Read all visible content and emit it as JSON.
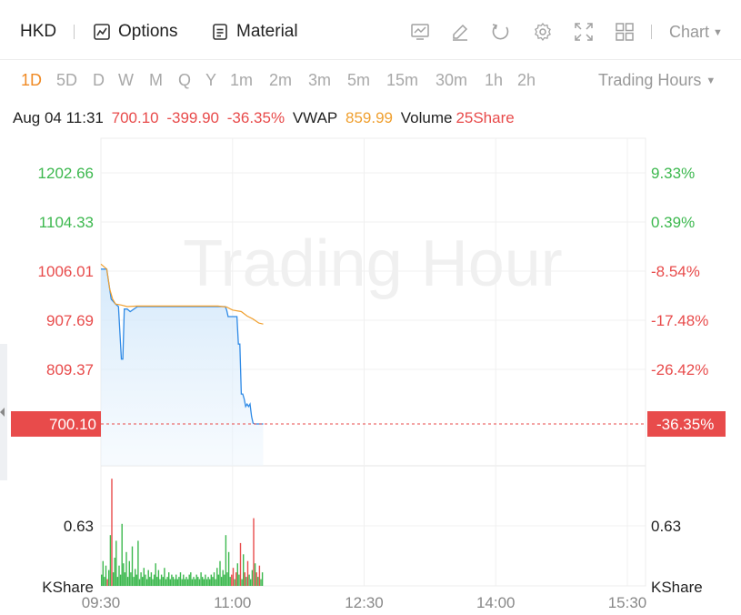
{
  "toolbar": {
    "symbol": "HKD",
    "options_label": "Options",
    "material_label": "Material",
    "chart_label": "Chart",
    "icons": [
      "indicator-icon",
      "draw-icon",
      "refresh-icon",
      "settings-icon",
      "fullscreen-icon",
      "layout-grid-icon"
    ]
  },
  "periods": {
    "items": [
      "1D",
      "5D",
      "D",
      "W",
      "M",
      "Q",
      "Y",
      "1m",
      "2m",
      "3m",
      "5m",
      "15m",
      "30m",
      "1h",
      "2h"
    ],
    "active": "1D",
    "trading_hours_label": "Trading Hours"
  },
  "info": {
    "datetime": "Aug 04 11:31",
    "price": "700.10",
    "change": "-399.90",
    "change_pct": "-36.35%",
    "vwap_label": "VWAP",
    "vwap_value": "859.99",
    "volume_label": "Volume",
    "volume_value": "25Share"
  },
  "colors": {
    "up": "#3cb84e",
    "down": "#e84b4b",
    "price_line": "#2f8ae6",
    "vwap_line": "#f0a030",
    "active_period": "#f08a24"
  },
  "chart_data": {
    "type": "line",
    "watermark": "Trading Hour",
    "price_ticks": [
      "1202.66",
      "1104.33",
      "1006.01",
      "907.69",
      "809.37"
    ],
    "pct_ticks": [
      "9.33%",
      "0.39%",
      "-8.54%",
      "-17.48%",
      "-26.42%"
    ],
    "current_price_label": "700.10",
    "current_pct_label": "-36.35%",
    "current_price": 700.1,
    "volume_tick": "0.63",
    "volume_unit": "KShare",
    "x_ticks": [
      "09:30",
      "11:00",
      "12:30",
      "14:00",
      "15:30"
    ],
    "x_minutes": [
      0,
      90,
      180,
      270,
      360
    ],
    "ylim_price": [
      700.1,
      1202.66
    ],
    "price_series": [
      [
        0,
        1010
      ],
      [
        4,
        1010
      ],
      [
        7,
        950
      ],
      [
        10,
        940
      ],
      [
        12,
        935
      ],
      [
        14,
        830
      ],
      [
        15,
        830
      ],
      [
        16,
        930
      ],
      [
        18,
        930
      ],
      [
        20,
        925
      ],
      [
        25,
        935
      ],
      [
        85,
        935
      ],
      [
        86,
        928
      ],
      [
        87,
        915
      ],
      [
        93,
        915
      ],
      [
        94,
        860
      ],
      [
        95,
        860
      ],
      [
        96,
        760
      ],
      [
        97,
        760
      ],
      [
        98,
        750
      ],
      [
        99,
        735
      ],
      [
        100,
        740
      ],
      [
        101,
        735
      ],
      [
        102,
        740
      ],
      [
        103,
        715
      ],
      [
        104,
        702
      ],
      [
        105,
        700.1
      ],
      [
        111,
        700.1
      ]
    ],
    "vwap_series": [
      [
        0,
        1020
      ],
      [
        2,
        1015
      ],
      [
        4,
        1010
      ],
      [
        6,
        970
      ],
      [
        8,
        950
      ],
      [
        10,
        940
      ],
      [
        14,
        938
      ],
      [
        18,
        935
      ],
      [
        25,
        936
      ],
      [
        50,
        936
      ],
      [
        80,
        936
      ],
      [
        86,
        934
      ],
      [
        90,
        928
      ],
      [
        96,
        925
      ],
      [
        100,
        916
      ],
      [
        104,
        910
      ],
      [
        108,
        902
      ],
      [
        111,
        900
      ]
    ],
    "volume_series": [
      [
        0,
        0.1,
        "up"
      ],
      [
        1,
        0.22,
        "up"
      ],
      [
        2,
        0.08,
        "up"
      ],
      [
        3,
        0.18,
        "up"
      ],
      [
        4,
        0.06,
        "down"
      ],
      [
        5,
        0.14,
        "up"
      ],
      [
        6,
        0.45,
        "up"
      ],
      [
        7,
        0.95,
        "down"
      ],
      [
        8,
        0.12,
        "up"
      ],
      [
        9,
        0.25,
        "up"
      ],
      [
        10,
        0.4,
        "up"
      ],
      [
        11,
        0.08,
        "up"
      ],
      [
        12,
        0.18,
        "up"
      ],
      [
        13,
        0.1,
        "up"
      ],
      [
        14,
        0.55,
        "up"
      ],
      [
        15,
        0.2,
        "up"
      ],
      [
        16,
        0.12,
        "up"
      ],
      [
        17,
        0.3,
        "up"
      ],
      [
        18,
        0.08,
        "up"
      ],
      [
        19,
        0.22,
        "up"
      ],
      [
        20,
        0.12,
        "up"
      ],
      [
        21,
        0.35,
        "up"
      ],
      [
        22,
        0.08,
        "up"
      ],
      [
        23,
        0.15,
        "up"
      ],
      [
        24,
        0.1,
        "up"
      ],
      [
        25,
        0.4,
        "up"
      ],
      [
        26,
        0.06,
        "up"
      ],
      [
        27,
        0.12,
        "up"
      ],
      [
        28,
        0.08,
        "up"
      ],
      [
        29,
        0.16,
        "up"
      ],
      [
        30,
        0.1,
        "up"
      ],
      [
        31,
        0.06,
        "up"
      ],
      [
        32,
        0.14,
        "up"
      ],
      [
        33,
        0.08,
        "up"
      ],
      [
        34,
        0.12,
        "up"
      ],
      [
        35,
        0.06,
        "up"
      ],
      [
        36,
        0.1,
        "up"
      ],
      [
        37,
        0.2,
        "up"
      ],
      [
        38,
        0.08,
        "up"
      ],
      [
        39,
        0.14,
        "up"
      ],
      [
        40,
        0.06,
        "up"
      ],
      [
        41,
        0.1,
        "up"
      ],
      [
        42,
        0.08,
        "up"
      ],
      [
        43,
        0.16,
        "up"
      ],
      [
        44,
        0.06,
        "up"
      ],
      [
        45,
        0.08,
        "up"
      ],
      [
        46,
        0.12,
        "up"
      ],
      [
        47,
        0.06,
        "up"
      ],
      [
        48,
        0.1,
        "up"
      ],
      [
        49,
        0.08,
        "up"
      ],
      [
        50,
        0.06,
        "up"
      ],
      [
        51,
        0.1,
        "up"
      ],
      [
        52,
        0.06,
        "up"
      ],
      [
        53,
        0.08,
        "up"
      ],
      [
        54,
        0.12,
        "up"
      ],
      [
        55,
        0.06,
        "up"
      ],
      [
        56,
        0.1,
        "up"
      ],
      [
        57,
        0.06,
        "up"
      ],
      [
        58,
        0.08,
        "up"
      ],
      [
        59,
        0.06,
        "up"
      ],
      [
        60,
        0.1,
        "up"
      ],
      [
        61,
        0.12,
        "up"
      ],
      [
        62,
        0.06,
        "up"
      ],
      [
        63,
        0.08,
        "up"
      ],
      [
        64,
        0.06,
        "up"
      ],
      [
        65,
        0.1,
        "up"
      ],
      [
        66,
        0.08,
        "up"
      ],
      [
        67,
        0.06,
        "up"
      ],
      [
        68,
        0.12,
        "up"
      ],
      [
        69,
        0.08,
        "up"
      ],
      [
        70,
        0.06,
        "up"
      ],
      [
        71,
        0.1,
        "up"
      ],
      [
        72,
        0.06,
        "up"
      ],
      [
        73,
        0.08,
        "up"
      ],
      [
        74,
        0.06,
        "up"
      ],
      [
        75,
        0.1,
        "up"
      ],
      [
        76,
        0.08,
        "up"
      ],
      [
        77,
        0.12,
        "up"
      ],
      [
        78,
        0.06,
        "up"
      ],
      [
        79,
        0.16,
        "up"
      ],
      [
        80,
        0.1,
        "up"
      ],
      [
        81,
        0.22,
        "up"
      ],
      [
        82,
        0.08,
        "up"
      ],
      [
        83,
        0.14,
        "up"
      ],
      [
        84,
        0.1,
        "up"
      ],
      [
        85,
        0.45,
        "up"
      ],
      [
        86,
        0.12,
        "up"
      ],
      [
        87,
        0.3,
        "up"
      ],
      [
        88,
        0.08,
        "up"
      ],
      [
        89,
        0.1,
        "down"
      ],
      [
        90,
        0.16,
        "down"
      ],
      [
        91,
        0.06,
        "up"
      ],
      [
        92,
        0.12,
        "down"
      ],
      [
        93,
        0.2,
        "up"
      ],
      [
        94,
        0.1,
        "up"
      ],
      [
        95,
        0.38,
        "down"
      ],
      [
        96,
        0.06,
        "up"
      ],
      [
        97,
        0.28,
        "up"
      ],
      [
        98,
        0.12,
        "down"
      ],
      [
        99,
        0.08,
        "up"
      ],
      [
        100,
        0.22,
        "down"
      ],
      [
        101,
        0.1,
        "up"
      ],
      [
        102,
        0.06,
        "up"
      ],
      [
        103,
        0.14,
        "up"
      ],
      [
        104,
        0.6,
        "down"
      ],
      [
        105,
        0.2,
        "up"
      ],
      [
        106,
        0.12,
        "down"
      ],
      [
        107,
        0.08,
        "up"
      ],
      [
        108,
        0.18,
        "down"
      ],
      [
        109,
        0.06,
        "up"
      ],
      [
        110,
        0.12,
        "up"
      ]
    ]
  }
}
